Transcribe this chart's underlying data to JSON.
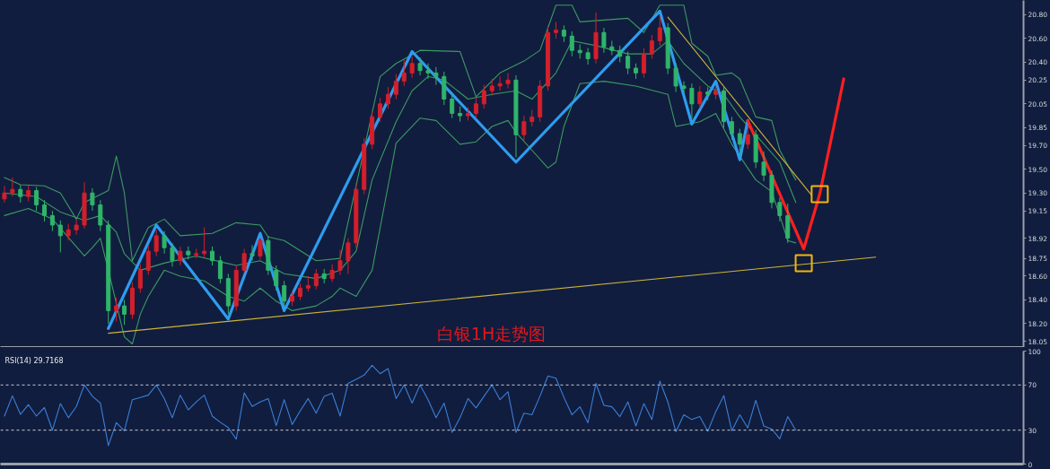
{
  "chart_data": [
    {
      "type": "candlestick",
      "title": "白银1H走势图",
      "ylim": [
        18.0,
        20.92
      ],
      "tick_labels": "y",
      "yticks": [
        {
          "value": 20.8,
          "label": "20.80"
        },
        {
          "value": 20.6,
          "label": "20.60"
        },
        {
          "value": 20.4,
          "label": "20.40"
        },
        20.25,
        20.05,
        19.85,
        {
          "value": 19.7,
          "label": "19.70"
        },
        {
          "value": 19.5,
          "label": "19.50"
        },
        {
          "value": 19.3,
          "label": "19.30"
        },
        19.15,
        18.92,
        18.75,
        {
          "value": 18.6,
          "label": "18.60"
        },
        {
          "value": 18.4,
          "label": "18.40"
        },
        {
          "value": 18.2,
          "label": "18.20"
        },
        18.05
      ],
      "categories": [
        null,
        null,
        null,
        null,
        null,
        null,
        null,
        null,
        null,
        null,
        null,
        null,
        null,
        null,
        null,
        null,
        null,
        null,
        null,
        null,
        null,
        null,
        null,
        null,
        null,
        null,
        null,
        null,
        null,
        null,
        null,
        null,
        null,
        null,
        null,
        null,
        null,
        null,
        null,
        null,
        null,
        null,
        null,
        null,
        null,
        null,
        null,
        null,
        null,
        null,
        null,
        null,
        null,
        null,
        null,
        null,
        null,
        null,
        null,
        null,
        null,
        null,
        null,
        null,
        null,
        null,
        null,
        null,
        null,
        null,
        null,
        null,
        null,
        null,
        null,
        null,
        null,
        null,
        null,
        null,
        null,
        null,
        null,
        null,
        null,
        null,
        null,
        null,
        null,
        null,
        null,
        null,
        null,
        null,
        null,
        null,
        null,
        null,
        null,
        null,
        null,
        null,
        null,
        null,
        null,
        null,
        null,
        null,
        null,
        null,
        null,
        null,
        null,
        null,
        null,
        null,
        null,
        null,
        null,
        null,
        null,
        null,
        null,
        null,
        null,
        null,
        null,
        null
      ],
      "ohlc": [
        [
          19.25,
          19.36,
          19.22,
          19.3
        ],
        [
          19.3,
          19.43,
          19.27,
          19.33
        ],
        [
          19.33,
          19.37,
          19.22,
          19.27
        ],
        [
          19.27,
          19.36,
          19.23,
          19.32
        ],
        [
          19.32,
          19.35,
          19.15,
          19.2
        ],
        [
          19.2,
          19.24,
          19.06,
          19.11
        ],
        [
          19.11,
          19.15,
          18.98,
          19.03
        ],
        [
          19.03,
          19.07,
          18.8,
          18.94
        ],
        [
          18.94,
          19.04,
          18.9,
          18.99
        ],
        [
          18.99,
          19.08,
          18.95,
          19.03
        ],
        [
          19.03,
          19.39,
          19.0,
          19.3
        ],
        [
          19.3,
          19.34,
          19.15,
          19.2
        ],
        [
          19.2,
          19.24,
          18.98,
          19.03
        ],
        [
          19.03,
          19.07,
          18.2,
          18.31
        ],
        [
          18.31,
          18.42,
          18.22,
          18.35
        ],
        [
          18.35,
          18.4,
          18.19,
          18.28
        ],
        [
          18.28,
          18.55,
          18.24,
          18.5
        ],
        [
          18.5,
          18.7,
          18.46,
          18.65
        ],
        [
          18.65,
          18.86,
          18.61,
          18.81
        ],
        [
          18.81,
          18.99,
          18.77,
          18.94
        ],
        [
          18.94,
          18.98,
          18.79,
          18.84
        ],
        [
          18.84,
          18.88,
          18.68,
          18.73
        ],
        [
          18.73,
          18.85,
          18.69,
          18.81
        ],
        [
          18.81,
          18.85,
          18.74,
          18.78
        ],
        [
          18.78,
          18.83,
          18.75,
          18.79
        ],
        [
          18.79,
          19.01,
          18.76,
          18.81
        ],
        [
          18.81,
          18.85,
          18.69,
          18.73
        ],
        [
          18.73,
          18.77,
          18.54,
          18.58
        ],
        [
          18.58,
          18.62,
          18.28,
          18.35
        ],
        [
          18.35,
          18.69,
          18.31,
          18.65
        ],
        [
          18.65,
          18.83,
          18.63,
          18.79
        ],
        [
          18.79,
          18.86,
          18.73,
          18.77
        ],
        [
          18.77,
          18.92,
          18.74,
          18.9
        ],
        [
          18.9,
          18.94,
          18.61,
          18.65
        ],
        [
          18.65,
          18.69,
          18.48,
          18.52
        ],
        [
          18.52,
          18.56,
          18.35,
          18.39
        ],
        [
          18.39,
          18.47,
          18.35,
          18.43
        ],
        [
          18.43,
          18.54,
          18.4,
          18.5
        ],
        [
          18.5,
          18.6,
          18.47,
          18.52
        ],
        [
          18.52,
          18.66,
          18.49,
          18.62
        ],
        [
          18.62,
          18.66,
          18.54,
          18.58
        ],
        [
          18.58,
          18.7,
          18.55,
          18.65
        ],
        [
          18.65,
          18.82,
          18.61,
          18.73
        ],
        [
          18.73,
          18.92,
          18.62,
          18.88
        ],
        [
          18.88,
          19.38,
          18.84,
          19.33
        ],
        [
          19.33,
          19.76,
          19.29,
          19.71
        ],
        [
          19.71,
          19.99,
          19.67,
          19.94
        ],
        [
          19.94,
          20.1,
          19.9,
          20.05
        ],
        [
          20.05,
          20.19,
          20.01,
          20.13
        ],
        [
          20.13,
          20.3,
          20.09,
          20.24
        ],
        [
          20.24,
          20.42,
          20.2,
          20.31
        ],
        [
          20.31,
          20.45,
          20.27,
          20.39
        ],
        [
          20.39,
          20.44,
          20.29,
          20.33
        ],
        [
          20.33,
          20.39,
          20.26,
          20.31
        ],
        [
          20.31,
          20.36,
          20.21,
          20.28
        ],
        [
          20.28,
          20.32,
          20.04,
          20.09
        ],
        [
          20.09,
          20.13,
          19.93,
          19.97
        ],
        [
          19.97,
          20.03,
          19.9,
          19.95
        ],
        [
          19.95,
          20.02,
          19.91,
          19.97
        ],
        [
          19.97,
          20.1,
          19.93,
          20.05
        ],
        [
          20.05,
          20.21,
          20.01,
          20.16
        ],
        [
          20.16,
          20.26,
          20.12,
          20.2
        ],
        [
          20.2,
          20.28,
          20.16,
          20.22
        ],
        [
          20.22,
          20.31,
          20.18,
          20.25
        ],
        [
          20.25,
          20.29,
          19.6,
          19.79
        ],
        [
          19.79,
          19.95,
          19.74,
          19.9
        ],
        [
          19.9,
          20.0,
          19.86,
          19.94
        ],
        [
          19.94,
          20.25,
          19.9,
          20.2
        ],
        [
          20.2,
          20.71,
          20.16,
          20.65
        ],
        [
          20.65,
          20.74,
          20.6,
          20.67
        ],
        [
          20.67,
          20.71,
          20.57,
          20.62
        ],
        [
          20.62,
          20.66,
          20.45,
          20.5
        ],
        [
          20.5,
          20.55,
          20.43,
          20.48
        ],
        [
          20.48,
          20.52,
          20.38,
          20.43
        ],
        [
          20.43,
          20.82,
          20.39,
          20.65
        ],
        [
          20.65,
          20.69,
          20.48,
          20.53
        ],
        [
          20.53,
          20.58,
          20.46,
          20.5
        ],
        [
          20.5,
          20.54,
          20.4,
          20.45
        ],
        [
          20.45,
          20.49,
          20.3,
          20.35
        ],
        [
          20.35,
          20.39,
          20.26,
          20.31
        ],
        [
          20.31,
          20.52,
          20.27,
          20.47
        ],
        [
          20.47,
          20.63,
          20.43,
          20.58
        ],
        [
          20.58,
          20.79,
          20.54,
          20.69
        ],
        [
          20.69,
          20.73,
          20.3,
          20.35
        ],
        [
          20.35,
          20.39,
          20.15,
          20.2
        ],
        [
          20.2,
          20.24,
          20.13,
          20.18
        ],
        [
          20.18,
          20.22,
          19.92,
          20.05
        ],
        [
          20.05,
          20.2,
          20.01,
          20.15
        ],
        [
          20.15,
          20.19,
          20.08,
          20.13
        ],
        [
          20.13,
          20.2,
          20.09,
          20.16
        ],
        [
          20.16,
          20.2,
          19.85,
          19.9
        ],
        [
          19.9,
          19.94,
          19.75,
          19.8
        ],
        [
          19.8,
          19.84,
          19.62,
          19.71
        ],
        [
          19.71,
          19.87,
          19.67,
          19.79
        ],
        [
          19.79,
          19.83,
          19.51,
          19.56
        ],
        [
          19.56,
          19.65,
          19.4,
          19.45
        ],
        [
          19.45,
          19.49,
          19.17,
          19.22
        ],
        [
          19.22,
          19.26,
          19.06,
          19.11
        ],
        [
          19.11,
          19.21,
          18.88,
          18.92
        ],
        null,
        null,
        null,
        null,
        null,
        null,
        null,
        null,
        null,
        null,
        null,
        null,
        null,
        null,
        null,
        null,
        null,
        null,
        null,
        null,
        null,
        null,
        null,
        null,
        null,
        null,
        null,
        null,
        null
      ],
      "colors": [
        "#d41f2a",
        "#d41f2a",
        "#2fb56a",
        "#d41f2a",
        "#2fb56a",
        "#2fb56a",
        "#2fb56a",
        "#2fb56a",
        "#d41f2a",
        "#d41f2a",
        "#d41f2a",
        "#2fb56a",
        "#2fb56a",
        "#2fb56a",
        "#d41f2a",
        "#2fb56a",
        "#d41f2a",
        "#d41f2a",
        "#d41f2a",
        "#d41f2a",
        "#2fb56a",
        "#2fb56a",
        "#d41f2a",
        "#2fb56a",
        "#d41f2a",
        "#d41f2a",
        "#2fb56a",
        "#2fb56a",
        "#2fb56a",
        "#d41f2a",
        "#d41f2a",
        "#2fb56a",
        "#d41f2a",
        "#2fb56a",
        "#2fb56a",
        "#2fb56a",
        "#d41f2a",
        "#d41f2a",
        "#d41f2a",
        "#d41f2a",
        "#2fb56a",
        "#d41f2a",
        "#d41f2a",
        "#d41f2a",
        "#d41f2a",
        "#d41f2a",
        "#d41f2a",
        "#d41f2a",
        "#d41f2a",
        "#d41f2a",
        "#d41f2a",
        "#d41f2a",
        "#2fb56a",
        "#2fb56a",
        "#2fb56a",
        "#2fb56a",
        "#2fb56a",
        "#2fb56a",
        "#d41f2a",
        "#d41f2a",
        "#d41f2a",
        "#d41f2a",
        "#d41f2a",
        "#d41f2a",
        "#2fb56a",
        "#d41f2a",
        "#d41f2a",
        "#d41f2a",
        "#d41f2a",
        "#d41f2a",
        "#2fb56a",
        "#2fb56a",
        "#2fb56a",
        "#2fb56a",
        "#d41f2a",
        "#2fb56a",
        "#2fb56a",
        "#2fb56a",
        "#2fb56a",
        "#2fb56a",
        "#d41f2a",
        "#d41f2a",
        "#d41f2a",
        "#2fb56a",
        "#2fb56a",
        "#2fb56a",
        "#2fb56a",
        "#d41f2a",
        "#2fb56a",
        "#d41f2a",
        "#2fb56a",
        "#2fb56a",
        "#2fb56a",
        "#d41f2a",
        "#2fb56a",
        "#2fb56a",
        "#2fb56a",
        "#2fb56a",
        "#2fb56a",
        null,
        null,
        null,
        null,
        null,
        null,
        null,
        null,
        null,
        null,
        null,
        null,
        null,
        null,
        null,
        null,
        null,
        null,
        null,
        null,
        null,
        null,
        null,
        null,
        null,
        null,
        null,
        null,
        null
      ],
      "series": [
        {
          "type": "line",
          "color": "#3c9a63",
          "values": [
            19.43,
            null,
            19.37,
            null,
            null,
            19.36,
            null,
            19.3,
            null,
            19.08,
            19.22,
            null,
            null,
            19.32,
            19.61,
            19.3,
            18.73,
            null,
            19.01,
            null,
            19.08,
            null,
            18.94,
            null,
            null,
            null,
            18.96,
            null,
            null,
            19.05,
            null,
            null,
            19.03,
            18.93,
            null,
            18.9,
            null,
            null,
            null,
            18.73,
            null,
            null,
            18.75,
            null,
            null,
            null,
            null,
            20.28,
            null,
            20.39,
            null,
            null,
            20.5,
            null,
            null,
            null,
            null,
            20.49,
            null,
            20.11,
            null,
            null,
            20.31,
            null,
            null,
            20.41,
            null,
            20.5,
            null,
            20.88,
            null,
            20.88,
            20.74,
            null,
            null,
            null,
            null,
            null,
            20.77,
            null,
            20.65,
            null,
            20.88,
            null,
            null,
            20.88,
            20.56,
            null,
            20.45,
            20.29,
            null,
            20.31,
            20.26,
            null,
            19.94,
            null,
            19.91,
            19.66,
            null,
            19.41,
            null,
            null,
            null,
            null,
            null,
            null,
            null,
            null,
            null,
            null,
            null,
            null,
            null,
            null,
            null,
            null,
            null,
            null,
            null,
            null,
            null,
            null,
            null,
            null,
            null,
            null,
            null,
            null
          ]
        },
        {
          "type": "line",
          "color": "#3c9a63",
          "values": [
            19.3,
            null,
            null,
            null,
            19.27,
            null,
            null,
            19.14,
            null,
            null,
            19.07,
            null,
            19.11,
            null,
            18.97,
            18.79,
            null,
            18.65,
            null,
            null,
            18.71,
            null,
            null,
            null,
            18.77,
            null,
            null,
            null,
            null,
            18.69,
            null,
            null,
            18.73,
            null,
            null,
            18.62,
            null,
            null,
            null,
            18.58,
            null,
            null,
            18.65,
            null,
            18.81,
            null,
            19.41,
            null,
            null,
            19.9,
            null,
            20.16,
            null,
            20.28,
            null,
            20.25,
            null,
            null,
            20.09,
            null,
            null,
            20.13,
            null,
            null,
            20.16,
            null,
            20.09,
            null,
            null,
            20.31,
            null,
            20.58,
            null,
            null,
            20.54,
            null,
            null,
            null,
            20.47,
            null,
            null,
            20.47,
            null,
            20.58,
            null,
            20.39,
            null,
            null,
            20.2,
            null,
            20.13,
            null,
            19.94,
            null,
            19.79,
            null,
            null,
            19.56,
            null,
            19.22,
            null,
            null,
            null,
            null,
            null,
            null,
            null,
            null,
            null,
            null,
            null,
            null,
            null,
            null,
            null,
            null,
            null,
            null,
            null,
            null,
            null,
            null,
            null,
            null,
            null,
            null,
            null,
            null
          ]
        },
        {
          "type": "line",
          "color": "#3c9a63",
          "values": [
            19.11,
            null,
            null,
            19.17,
            null,
            null,
            19.08,
            null,
            null,
            null,
            18.77,
            18.84,
            18.92,
            18.65,
            null,
            18.09,
            18.03,
            18.28,
            18.43,
            null,
            18.65,
            null,
            18.6,
            null,
            null,
            18.56,
            null,
            null,
            18.43,
            null,
            18.39,
            null,
            18.5,
            null,
            18.39,
            null,
            18.31,
            null,
            null,
            18.35,
            null,
            18.43,
            18.5,
            null,
            18.43,
            null,
            18.65,
            null,
            19.36,
            19.72,
            null,
            null,
            19.93,
            null,
            19.91,
            null,
            null,
            19.71,
            null,
            19.73,
            null,
            19.86,
            null,
            19.91,
            19.81,
            null,
            19.66,
            null,
            19.51,
            19.56,
            19.86,
            null,
            20.22,
            null,
            null,
            20.24,
            null,
            null,
            null,
            20.2,
            null,
            null,
            null,
            20.13,
            19.86,
            null,
            null,
            19.9,
            null,
            19.97,
            null,
            19.71,
            19.61,
            null,
            19.41,
            null,
            19.31,
            19.11,
            18.9,
            18.88,
            null,
            null,
            null,
            null,
            null,
            null,
            null,
            null,
            null,
            null,
            null,
            null,
            null,
            null,
            null,
            null,
            null,
            null,
            null,
            null,
            null,
            null,
            null,
            null,
            null,
            null,
            null,
            null
          ]
        },
        {
          "type": "line",
          "color": "#cdb43a",
          "values": [
            null,
            null,
            null,
            null,
            null,
            null,
            null,
            null,
            null,
            null,
            null,
            null,
            null,
            18.12,
            null,
            null,
            null,
            null,
            null,
            null,
            null,
            null,
            null,
            null,
            null,
            null,
            null,
            null,
            null,
            null,
            null,
            null,
            null,
            null,
            null,
            null,
            null,
            null,
            null,
            null,
            null,
            null,
            null,
            null,
            null,
            null,
            null,
            null,
            null,
            null,
            null,
            null,
            null,
            null,
            null,
            null,
            null,
            null,
            null,
            null,
            null,
            null,
            null,
            null,
            null,
            null,
            null,
            null,
            null,
            null,
            null,
            null,
            null,
            null,
            null,
            null,
            null,
            null,
            null,
            null,
            null,
            null,
            null,
            null,
            null,
            null,
            null,
            null,
            null,
            null,
            null,
            null,
            null,
            null,
            null,
            null,
            null,
            null,
            null,
            null,
            null,
            null,
            null,
            null,
            null,
            null,
            null,
            null,
            null,
            18.76,
            null,
            null,
            null,
            null,
            null,
            null,
            null,
            null,
            null,
            null,
            null,
            null,
            null,
            null,
            null,
            null,
            null,
            null
          ]
        },
        {
          "type": "line",
          "color": "#cdb43a",
          "values": [
            null,
            null,
            null,
            null,
            null,
            null,
            null,
            null,
            null,
            null,
            null,
            null,
            null,
            null,
            null,
            null,
            null,
            null,
            null,
            null,
            null,
            null,
            null,
            null,
            null,
            null,
            null,
            null,
            null,
            null,
            null,
            null,
            null,
            null,
            null,
            null,
            null,
            null,
            null,
            null,
            null,
            null,
            null,
            null,
            null,
            null,
            null,
            null,
            null,
            null,
            null,
            null,
            null,
            null,
            null,
            null,
            null,
            null,
            null,
            null,
            null,
            null,
            null,
            null,
            null,
            null,
            null,
            null,
            null,
            null,
            null,
            null,
            null,
            null,
            null,
            null,
            null,
            null,
            null,
            null,
            null,
            null,
            null,
            20.78,
            null,
            null,
            null,
            null,
            null,
            null,
            null,
            null,
            null,
            null,
            null,
            null,
            null,
            null,
            null,
            null,
            null,
            19.28,
            null,
            null,
            null,
            null,
            null,
            null,
            null,
            null,
            null,
            null,
            null,
            null,
            null,
            null,
            null,
            null,
            null,
            null,
            null,
            null,
            null,
            null,
            null,
            null,
            null,
            null
          ]
        },
        {
          "type": "line",
          "color": "#2e9cf0",
          "values": [
            null,
            null,
            null,
            null,
            null,
            null,
            null,
            null,
            null,
            null,
            null,
            null,
            null,
            18.16,
            null,
            null,
            null,
            null,
            null,
            19.03,
            null,
            null,
            null,
            null,
            null,
            null,
            null,
            null,
            18.24,
            null,
            null,
            null,
            18.96,
            null,
            null,
            18.31,
            null,
            null,
            null,
            null,
            null,
            null,
            null,
            null,
            null,
            null,
            null,
            null,
            null,
            null,
            null,
            20.49,
            null,
            null,
            null,
            null,
            null,
            null,
            null,
            null,
            null,
            null,
            null,
            null,
            19.56,
            null,
            null,
            null,
            null,
            null,
            null,
            null,
            null,
            null,
            null,
            null,
            null,
            null,
            null,
            null,
            null,
            null,
            20.83,
            null,
            null,
            null,
            19.88,
            null,
            null,
            20.24,
            null,
            null,
            19.58,
            19.91,
            null,
            null,
            null,
            null,
            null,
            null,
            null,
            null,
            null,
            null,
            null,
            null,
            null,
            null,
            null,
            null,
            null,
            null,
            null,
            null,
            null,
            null,
            null,
            null,
            null,
            null,
            null,
            null,
            null,
            null,
            null,
            null,
            null,
            null
          ]
        },
        {
          "type": "line",
          "color": "#ff1f1f",
          "values": [
            null,
            null,
            null,
            null,
            null,
            null,
            null,
            null,
            null,
            null,
            null,
            null,
            null,
            null,
            null,
            null,
            null,
            null,
            null,
            null,
            null,
            null,
            null,
            null,
            null,
            null,
            null,
            null,
            null,
            null,
            null,
            null,
            null,
            null,
            null,
            null,
            null,
            null,
            null,
            null,
            null,
            null,
            null,
            null,
            null,
            null,
            null,
            null,
            null,
            null,
            null,
            null,
            null,
            null,
            null,
            null,
            null,
            null,
            null,
            null,
            null,
            null,
            null,
            null,
            null,
            null,
            null,
            null,
            null,
            null,
            null,
            null,
            null,
            null,
            null,
            null,
            null,
            null,
            null,
            null,
            null,
            null,
            null,
            null,
            null,
            null,
            null,
            null,
            null,
            null,
            null,
            null,
            null,
            19.91,
            null,
            null,
            null,
            null,
            null,
            null,
            18.83,
            null,
            19.29,
            null,
            null,
            20.26,
            null,
            null,
            null,
            null,
            null,
            null,
            null,
            null,
            null,
            null,
            null,
            null,
            null,
            null,
            null,
            null,
            null,
            null,
            null,
            null,
            null,
            null
          ]
        },
        {
          "type": "scatter",
          "color": "#f3b50c",
          "marker": "square",
          "values": [
            null,
            null,
            null,
            null,
            null,
            null,
            null,
            null,
            null,
            null,
            null,
            null,
            null,
            null,
            null,
            null,
            null,
            null,
            null,
            null,
            null,
            null,
            null,
            null,
            null,
            null,
            null,
            null,
            null,
            null,
            null,
            null,
            null,
            null,
            null,
            null,
            null,
            null,
            null,
            null,
            null,
            null,
            null,
            null,
            null,
            null,
            null,
            null,
            null,
            null,
            null,
            null,
            null,
            null,
            null,
            null,
            null,
            null,
            null,
            null,
            null,
            null,
            null,
            null,
            null,
            null,
            null,
            null,
            null,
            null,
            null,
            null,
            null,
            null,
            null,
            null,
            null,
            null,
            null,
            null,
            null,
            null,
            null,
            null,
            null,
            null,
            null,
            null,
            null,
            null,
            null,
            null,
            null,
            null,
            null,
            null,
            null,
            null,
            null,
            null,
            18.71,
            null,
            19.29,
            null,
            null,
            null,
            null,
            null,
            null,
            null,
            null,
            null,
            null,
            null,
            null,
            null,
            null,
            null,
            null,
            null,
            null,
            null,
            null,
            null,
            null,
            null,
            null,
            null
          ]
        }
      ]
    },
    {
      "type": "line",
      "title": "RSI(14) 29.7168",
      "ylim": [
        0,
        100
      ],
      "yticks": [
        0,
        30,
        70,
        100
      ],
      "tick_labels": "y",
      "categories": [
        null,
        null,
        null,
        null,
        null,
        null,
        null,
        null,
        null,
        null,
        null,
        null,
        null,
        null,
        null,
        null,
        null,
        null,
        null,
        null,
        null,
        null,
        null,
        null,
        null,
        null,
        null,
        null,
        null,
        null,
        null,
        null,
        null,
        null,
        null,
        null,
        null,
        null,
        null,
        null,
        null,
        null,
        null,
        null,
        null,
        null,
        null,
        null,
        null,
        null,
        null,
        null,
        null,
        null,
        null,
        null,
        null,
        null,
        null,
        null,
        null,
        null,
        null,
        null,
        null,
        null,
        null,
        null,
        null,
        null,
        null,
        null,
        null,
        null,
        null,
        null,
        null,
        null,
        null,
        null,
        null,
        null,
        null,
        null,
        null,
        null,
        null,
        null,
        null,
        null,
        null,
        null,
        null,
        null,
        null,
        null,
        null,
        null,
        null,
        null,
        null,
        null,
        null,
        null,
        null,
        null,
        null,
        null,
        null,
        null,
        null,
        null,
        null,
        null,
        null,
        null,
        null,
        null,
        null,
        null,
        null,
        null,
        null,
        null,
        null,
        null,
        null,
        null
      ],
      "ref_lines": [
        {
          "axis": "y",
          "value": 70,
          "color": "#c9ccd4",
          "line_style": "dashed"
        },
        {
          "axis": "y",
          "value": 30,
          "color": "#c9ccd4",
          "line_style": "dashed"
        }
      ],
      "series": [
        {
          "color": "#3a7fd8",
          "values": [
            42.5,
            60.4,
            44,
            52.6,
            42.5,
            50,
            30,
            53.5,
            41,
            51,
            70,
            60,
            54,
            16.4,
            36.7,
            29.4,
            57,
            59,
            61,
            70,
            58,
            41,
            61,
            48,
            55,
            61,
            42.5,
            37,
            32.3,
            22,
            63,
            51,
            55,
            58,
            34,
            57,
            35,
            47,
            58,
            45,
            60,
            62.7,
            42.5,
            71.5,
            75,
            78.7,
            87.4,
            80,
            84.5,
            58,
            70,
            54,
            70,
            57,
            41,
            54,
            28,
            41,
            58,
            49.7,
            60,
            70,
            57,
            64,
            28,
            45,
            43.6,
            60,
            78,
            76,
            59,
            43.6,
            50.7,
            36.5,
            71.4,
            52,
            50.7,
            42,
            55,
            33.7,
            53.5,
            39.4,
            73.4,
            55,
            28.6,
            43.6,
            39.4,
            42,
            29,
            46.5,
            60.6,
            29.4,
            43.6,
            32,
            56.4,
            33.7,
            31,
            22.3,
            42,
            30,
            null,
            null,
            null,
            null,
            null,
            null,
            null,
            null,
            null,
            null,
            null,
            null,
            null,
            null,
            null,
            null,
            null,
            null,
            null,
            null,
            null,
            null,
            null,
            null,
            null,
            null,
            null,
            null
          ]
        }
      ]
    }
  ]
}
